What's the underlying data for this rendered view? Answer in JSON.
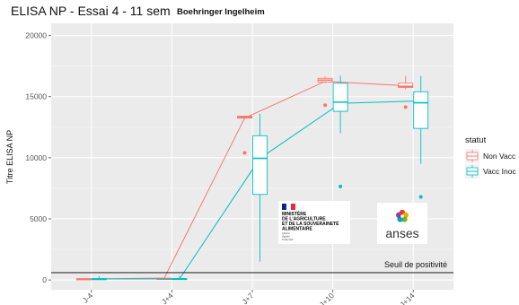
{
  "chart_data": {
    "type": "box",
    "title": "ELISA NP - Essai 4 - 11 sem",
    "ylabel": "Titre ELISA NP",
    "xlabel": "",
    "ylim": [
      -800,
      21000
    ],
    "yticks": [
      0,
      5000,
      10000,
      15000,
      20000
    ],
    "categories": [
      "J-4",
      "J+4",
      "J+7",
      "J+10",
      "J+14"
    ],
    "legend": {
      "title": "statut",
      "position": "right"
    },
    "grid": true,
    "series": [
      {
        "name": "Non Vacc",
        "color": "#F8766D",
        "boxes": [
          {
            "min": 50,
            "q1": 60,
            "median": 80,
            "q3": 100,
            "max": 120,
            "mean": 80,
            "outliers": []
          },
          {
            "min": 80,
            "q1": 100,
            "median": 110,
            "q3": 130,
            "max": 180,
            "mean": 150,
            "outliers": []
          },
          {
            "min": 13150,
            "q1": 13250,
            "median": 13320,
            "q3": 13400,
            "max": 13450,
            "mean": 13250,
            "outliers": [
              10400
            ]
          },
          {
            "min": 16100,
            "q1": 16200,
            "median": 16350,
            "q3": 16500,
            "max": 16650,
            "mean": 16250,
            "outliers": [
              14300
            ]
          },
          {
            "min": 15600,
            "q1": 15750,
            "median": 15850,
            "q3": 16100,
            "max": 16700,
            "mean": 15900,
            "outliers": [
              14150
            ]
          }
        ]
      },
      {
        "name": "Vacc Inoc",
        "color": "#00BFC4",
        "boxes": [
          {
            "min": 0,
            "q1": 50,
            "median": 80,
            "q3": 110,
            "max": 300,
            "mean": 80,
            "outliers": []
          },
          {
            "min": 20,
            "q1": 50,
            "median": 80,
            "q3": 120,
            "max": 350,
            "mean": 80,
            "outliers": []
          },
          {
            "min": 1500,
            "q1": 7000,
            "median": 9950,
            "q3": 11800,
            "max": 13600,
            "mean": 9950,
            "outliers": []
          },
          {
            "min": 12000,
            "q1": 13800,
            "median": 14550,
            "q3": 16100,
            "max": 16700,
            "mean": 14450,
            "outliers": [
              7650
            ]
          },
          {
            "min": 9500,
            "q1": 12400,
            "median": 14500,
            "q3": 15400,
            "max": 16700,
            "mean": 14650,
            "outliers": [
              6800
            ]
          }
        ]
      }
    ],
    "threshold": {
      "value": 600,
      "label": "Seuil de positivité"
    }
  },
  "header": {
    "brand": "Boehringer Ingelheim"
  },
  "logos": {
    "ministry_lines": [
      "MINISTÈRE",
      "DE L'AGRICULTURE",
      "ET DE LA SOUVERAINETÉ",
      "ALIMENTAIRE"
    ],
    "ministry_motto": [
      "Liberté",
      "Égalité",
      "Fraternité"
    ],
    "anses": "anses"
  }
}
